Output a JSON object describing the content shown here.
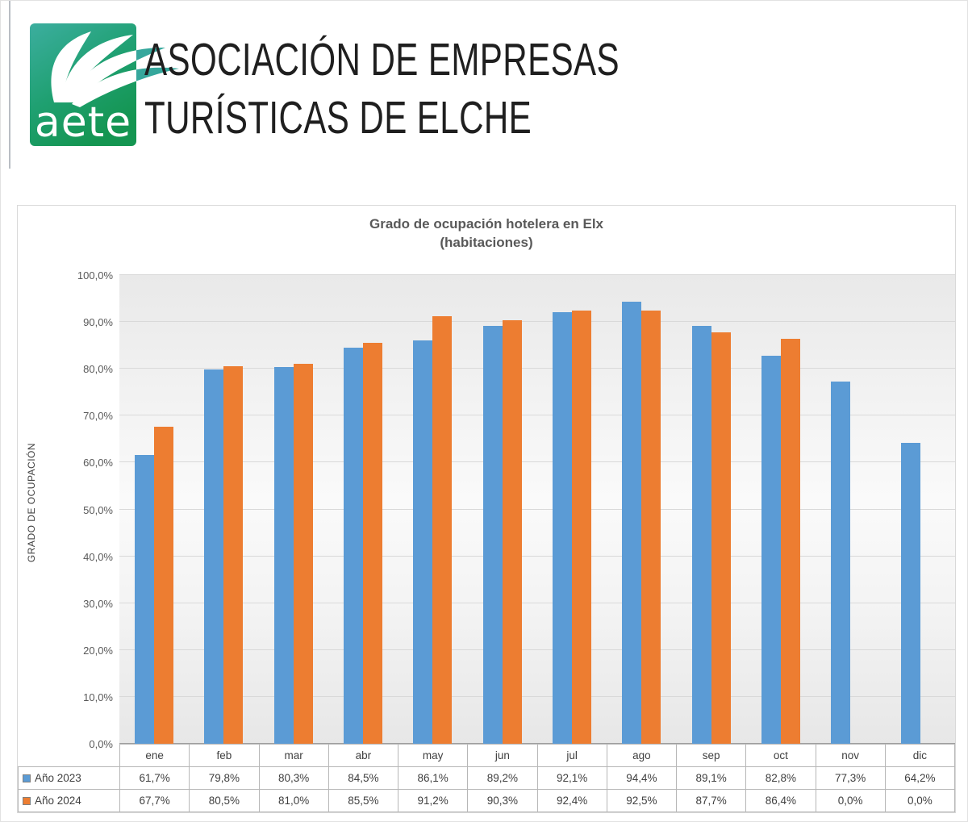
{
  "header": {
    "logo_text": "aete",
    "org_line1": "ASOCIACIÓN DE EMPRESAS",
    "org_line2": "TURÍSTICAS DE ELCHE",
    "logo_teal": "#35a79c",
    "logo_green": "#169a52"
  },
  "chart_data": {
    "type": "bar",
    "title": "Grado de ocupación hotelera en Elx",
    "subtitle": "(habitaciones)",
    "ylabel": "GRADO DE OCUPACIÓN",
    "xlabel": "",
    "ylim": [
      0,
      100
    ],
    "grid": true,
    "legend_position": "table-left",
    "ytick_labels": [
      "0,0%",
      "10,0%",
      "20,0%",
      "30,0%",
      "40,0%",
      "50,0%",
      "60,0%",
      "70,0%",
      "80,0%",
      "90,0%",
      "100,0%"
    ],
    "categories": [
      "ene",
      "feb",
      "mar",
      "abr",
      "may",
      "jun",
      "jul",
      "ago",
      "sep",
      "oct",
      "nov",
      "dic"
    ],
    "series": [
      {
        "name": "Año 2023",
        "color": "#5B9BD5",
        "values": [
          61.7,
          79.8,
          80.3,
          84.5,
          86.1,
          89.2,
          92.1,
          94.4,
          89.1,
          82.8,
          77.3,
          64.2
        ],
        "labels": [
          "61,7%",
          "79,8%",
          "80,3%",
          "84,5%",
          "86,1%",
          "89,2%",
          "92,1%",
          "94,4%",
          "89,1%",
          "82,8%",
          "77,3%",
          "64,2%"
        ]
      },
      {
        "name": "Año 2024",
        "color": "#ED7D31",
        "values": [
          67.7,
          80.5,
          81.0,
          85.5,
          91.2,
          90.3,
          92.4,
          92.5,
          87.7,
          86.4,
          0.0,
          0.0
        ],
        "labels": [
          "67,7%",
          "80,5%",
          "81,0%",
          "85,5%",
          "91,2%",
          "90,3%",
          "92,4%",
          "92,5%",
          "87,7%",
          "86,4%",
          "0,0%",
          "0,0%"
        ]
      }
    ]
  }
}
